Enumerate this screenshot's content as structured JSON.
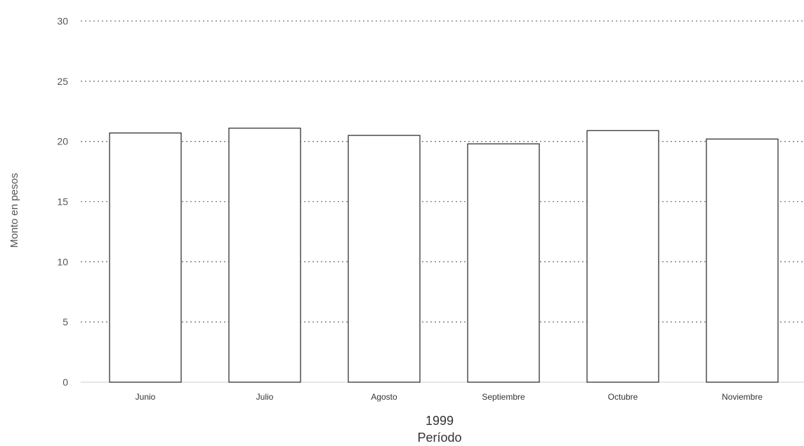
{
  "chart_data": {
    "type": "bar",
    "categories": [
      "Junio",
      "Julio",
      "Agosto",
      "Septiembre",
      "Octubre",
      "Noviembre"
    ],
    "values": [
      20.7,
      21.1,
      20.5,
      19.8,
      20.9,
      20.2
    ],
    "xlabel_line1": "1999",
    "xlabel_line2": "Período",
    "ylabel": "Monto en pesos",
    "ylim": [
      0,
      30
    ],
    "yticks": [
      0,
      5,
      10,
      15,
      20,
      25,
      30
    ],
    "grid": true,
    "grid_style": "dotted",
    "bar_fill": "#ffffff",
    "bar_stroke": "#222222",
    "grid_color": "#777777"
  }
}
